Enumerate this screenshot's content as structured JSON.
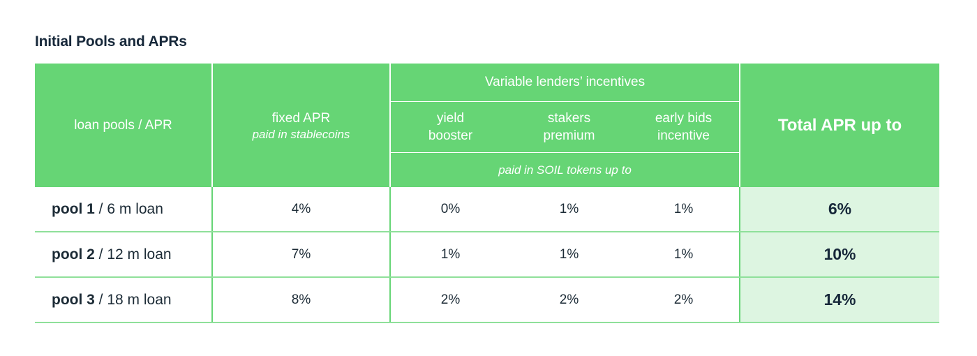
{
  "title": "Initial Pools and APRs",
  "table": {
    "headers": {
      "loan_pools": "loan pools / APR",
      "fixed_apr": "fixed APR",
      "fixed_apr_sub": "paid in stablecoins",
      "variable_group": "Variable lenders’ incentives",
      "yield_booster": "yield booster",
      "stakers_premium": "stakers premium",
      "early_bids": "early bids incentive",
      "paid_in_soil": "paid in SOIL tokens up to",
      "total_apr": "Total APR up to"
    },
    "rows": [
      {
        "pool": "pool 1",
        "loan": " / 6 m loan",
        "fixed": "4%",
        "yield": "0%",
        "stakers": "1%",
        "early": "1%",
        "total": "6%"
      },
      {
        "pool": "pool 2",
        "loan": " / 12 m loan",
        "fixed": "7%",
        "yield": "1%",
        "stakers": "1%",
        "early": "1%",
        "total": "10%"
      },
      {
        "pool": "pool 3",
        "loan": " / 18 m loan",
        "fixed": "8%",
        "yield": "2%",
        "stakers": "2%",
        "early": "2%",
        "total": "14%"
      }
    ]
  },
  "colors": {
    "header_green": "#66d575",
    "total_cell_bg": "#ddf5e1",
    "text_dark": "#17283a"
  }
}
